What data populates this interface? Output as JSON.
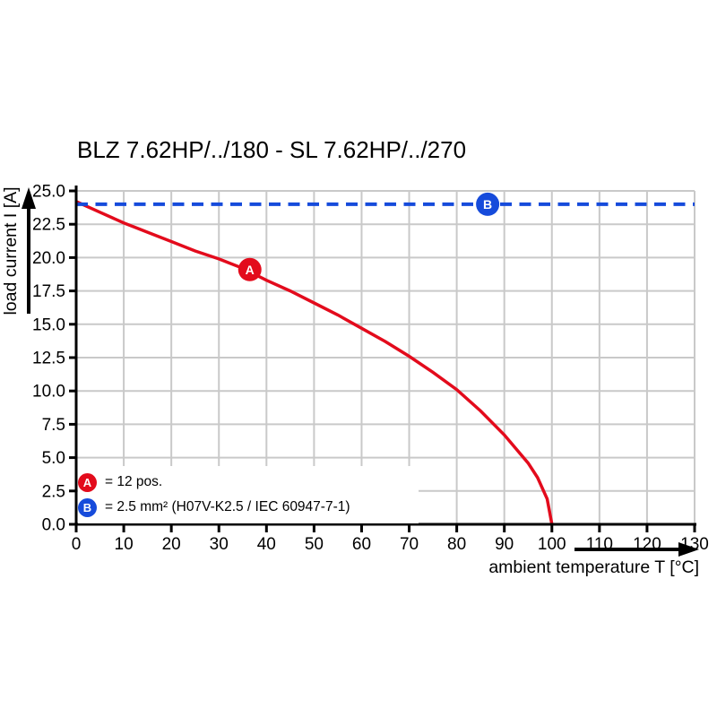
{
  "title": "BLZ 7.62HP/../180 - SL 7.62HP/../270",
  "chart_data": {
    "type": "line",
    "title": "BLZ 7.62HP/../180 - SL 7.62HP/../270",
    "xlabel": "ambient temperature T [°C]",
    "ylabel": "load current I [A]",
    "xlim": [
      0,
      130
    ],
    "ylim": [
      0,
      25
    ],
    "xticks": [
      0,
      10,
      20,
      30,
      40,
      50,
      60,
      70,
      80,
      90,
      100,
      110,
      120,
      130
    ],
    "yticks": [
      0.0,
      2.5,
      5.0,
      7.5,
      10.0,
      12.5,
      15.0,
      17.5,
      20.0,
      22.5,
      25.0
    ],
    "grid": true,
    "legend_position": "bottom-left",
    "colors": {
      "grid": "#c9c9c9",
      "axis": "#000000",
      "background": "#ffffff"
    },
    "series": [
      {
        "name": "derating-curve",
        "label": "= 12 pos.",
        "color": "#e30b1c",
        "line_style": "solid",
        "line_width": 3.5,
        "x": [
          0,
          5,
          10,
          15,
          20,
          25,
          30,
          35,
          40,
          45,
          50,
          55,
          60,
          65,
          70,
          75,
          80,
          85,
          90,
          95,
          97,
          99,
          100
        ],
        "y": [
          24.2,
          23.4,
          22.6,
          21.9,
          21.2,
          20.5,
          19.9,
          19.2,
          18.3,
          17.5,
          16.6,
          15.7,
          14.7,
          13.7,
          12.6,
          11.4,
          10.1,
          8.5,
          6.7,
          4.6,
          3.5,
          1.9,
          0
        ],
        "marker": {
          "letter": "A",
          "x": 36.5,
          "y": 19.1
        }
      },
      {
        "name": "current-limit-line",
        "label": "= 2.5 mm² (H07V-K2.5 / IEC 60947-7-1)",
        "color": "#164bdb",
        "line_style": "dashed",
        "line_width": 4,
        "x": [
          0,
          130
        ],
        "y": [
          24,
          24
        ],
        "marker": {
          "letter": "B",
          "x": 86.5,
          "y": 24
        }
      }
    ]
  }
}
